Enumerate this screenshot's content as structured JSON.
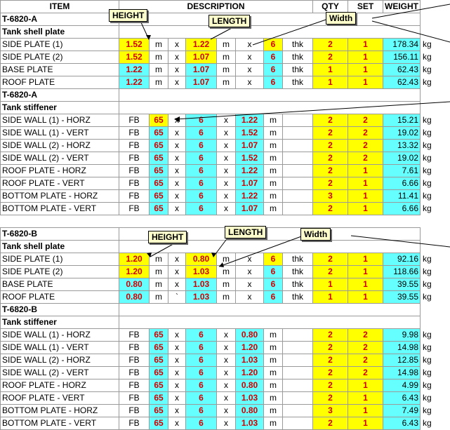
{
  "headers": {
    "item": "ITEM",
    "description": "DESCRIPTION",
    "qty": "QTY",
    "set": "SET",
    "weight": "WEIGHT"
  },
  "callouts": {
    "height": "HEIGHT",
    "length": "LENGTH",
    "width": "Width"
  },
  "units": {
    "m": "m",
    "x": "x",
    "thk": "thk",
    "kg": "kg",
    "fb": "FB",
    "tick": "`"
  },
  "blocks": [
    {
      "tag": "T-6820-A",
      "title": "Tank shell plate",
      "plates": [
        {
          "item": "SIDE PLATE (1)",
          "h": "1.52",
          "l": "1.22",
          "t": "6",
          "qty": "2",
          "set": "1",
          "weight": "178.34"
        },
        {
          "item": "SIDE PLATE (2)",
          "h": "1.52",
          "l": "1.07",
          "t": "6",
          "qty": "2",
          "set": "1",
          "weight": "156.11"
        },
        {
          "item": "BASE PLATE",
          "h": "1.22",
          "l": "1.07",
          "t": "6",
          "qty": "1",
          "set": "1",
          "weight": "62.43"
        },
        {
          "item": "ROOF PLATE",
          "h": "1.22",
          "l": "1.07",
          "t": "6",
          "qty": "1",
          "set": "1",
          "weight": "62.43"
        }
      ]
    },
    {
      "tag": "T-6820-A",
      "title": "Tank stiffener",
      "stiff": [
        {
          "item": "SIDE WALL (1) - HORZ",
          "a": "65",
          "b": "6",
          "c": "1.22",
          "qty": "2",
          "set": "2",
          "weight": "15.21"
        },
        {
          "item": "SIDE WALL (1) - VERT",
          "a": "65",
          "b": "6",
          "c": "1.52",
          "qty": "2",
          "set": "2",
          "weight": "19.02"
        },
        {
          "item": "SIDE WALL (2) - HORZ",
          "a": "65",
          "b": "6",
          "c": "1.07",
          "qty": "2",
          "set": "2",
          "weight": "13.32"
        },
        {
          "item": "SIDE WALL (2) - VERT",
          "a": "65",
          "b": "6",
          "c": "1.52",
          "qty": "2",
          "set": "2",
          "weight": "19.02"
        },
        {
          "item": "ROOF PLATE - HORZ",
          "a": "65",
          "b": "6",
          "c": "1.22",
          "qty": "2",
          "set": "1",
          "weight": "7.61"
        },
        {
          "item": "ROOF PLATE - VERT",
          "a": "65",
          "b": "6",
          "c": "1.07",
          "qty": "2",
          "set": "1",
          "weight": "6.66"
        },
        {
          "item": "BOTTOM PLATE - HORZ",
          "a": "65",
          "b": "6",
          "c": "1.22",
          "qty": "3",
          "set": "1",
          "weight": "11.41"
        },
        {
          "item": "BOTTOM PLATE - VERT",
          "a": "65",
          "b": "6",
          "c": "1.07",
          "qty": "2",
          "set": "1",
          "weight": "6.66"
        }
      ]
    },
    {
      "tag": "T-6820-B",
      "title": "Tank shell plate",
      "plates": [
        {
          "item": "SIDE PLATE (1)",
          "h": "1.20",
          "l": "0.80",
          "t": "6",
          "qty": "2",
          "set": "1",
          "weight": "92.16"
        },
        {
          "item": "SIDE PLATE (2)",
          "h": "1.20",
          "l": "1.03",
          "t": "6",
          "qty": "2",
          "set": "1",
          "weight": "118.66"
        },
        {
          "item": "BASE PLATE",
          "h": "0.80",
          "l": "1.03",
          "t": "6",
          "qty": "1",
          "set": "1",
          "weight": "39.55"
        },
        {
          "item": "ROOF PLATE",
          "h": "0.80",
          "l": "1.03",
          "t": "6",
          "qty": "1",
          "set": "1",
          "weight": "39.55"
        }
      ]
    },
    {
      "tag": "T-6820-B",
      "title": "Tank stiffener",
      "stiff": [
        {
          "item": "SIDE WALL (1) - HORZ",
          "a": "65",
          "b": "6",
          "c": "0.80",
          "qty": "2",
          "set": "2",
          "weight": "9.98"
        },
        {
          "item": "SIDE WALL (1) - VERT",
          "a": "65",
          "b": "6",
          "c": "1.20",
          "qty": "2",
          "set": "2",
          "weight": "14.98"
        },
        {
          "item": "SIDE WALL (2) - HORZ",
          "a": "65",
          "b": "6",
          "c": "1.03",
          "qty": "2",
          "set": "2",
          "weight": "12.85"
        },
        {
          "item": "SIDE WALL (2) - VERT",
          "a": "65",
          "b": "6",
          "c": "1.20",
          "qty": "2",
          "set": "2",
          "weight": "14.98"
        },
        {
          "item": "ROOF PLATE - HORZ",
          "a": "65",
          "b": "6",
          "c": "0.80",
          "qty": "2",
          "set": "1",
          "weight": "4.99"
        },
        {
          "item": "ROOF PLATE - VERT",
          "a": "65",
          "b": "6",
          "c": "1.03",
          "qty": "2",
          "set": "1",
          "weight": "6.43"
        },
        {
          "item": "BOTTOM PLATE - HORZ",
          "a": "65",
          "b": "6",
          "c": "0.80",
          "qty": "3",
          "set": "1",
          "weight": "7.49"
        },
        {
          "item": "BOTTOM PLATE - VERT",
          "a": "65",
          "b": "6",
          "c": "1.03",
          "qty": "2",
          "set": "1",
          "weight": "6.43"
        }
      ]
    }
  ]
}
